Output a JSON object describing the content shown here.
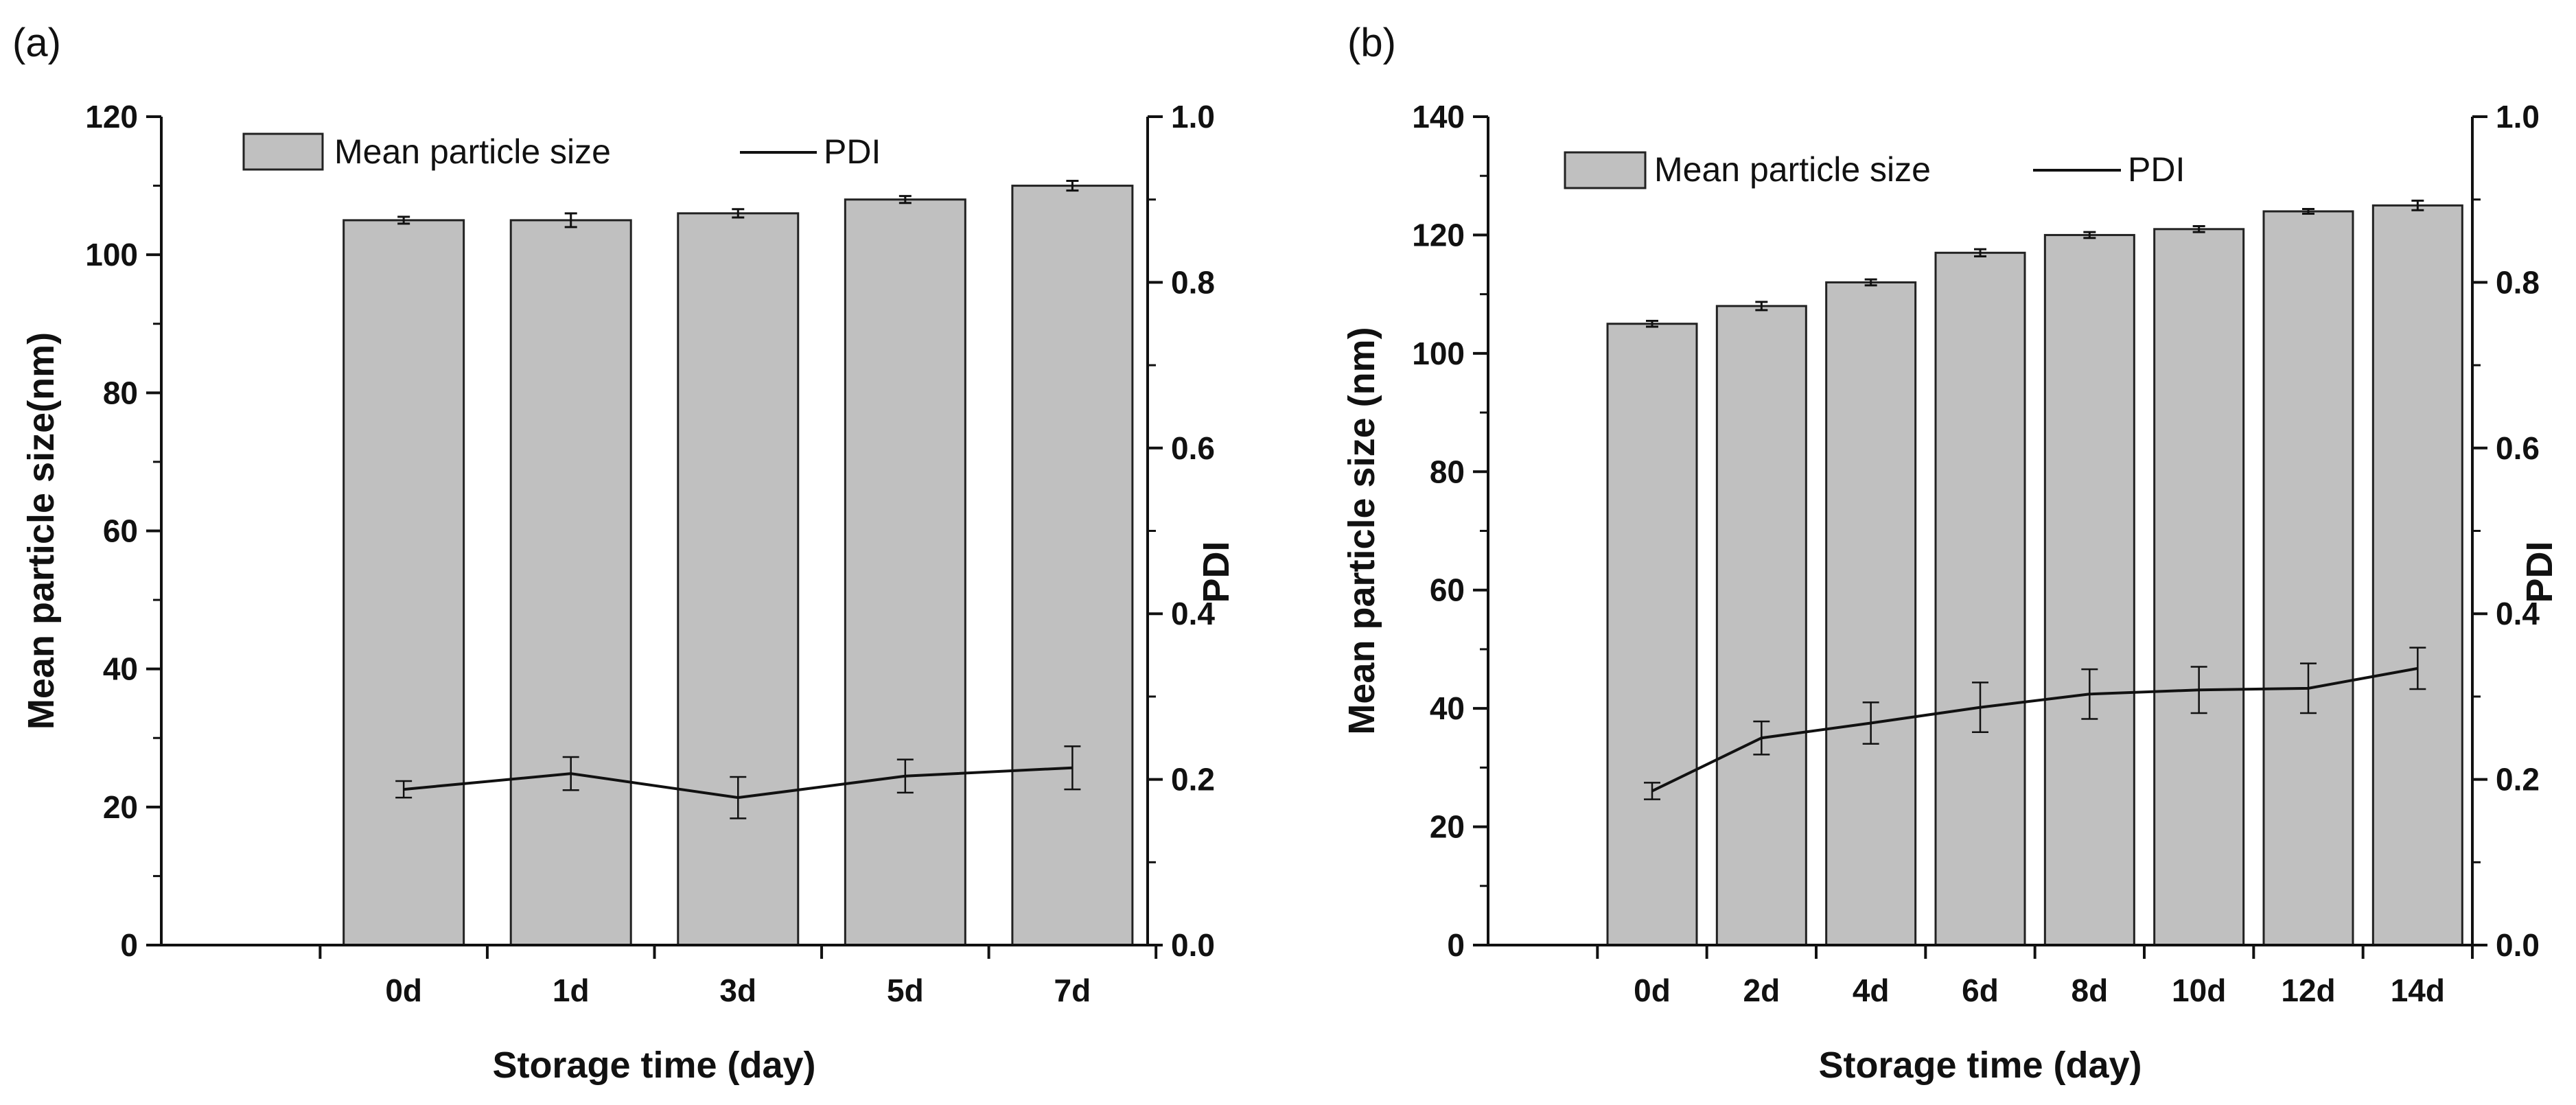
{
  "colors": {
    "bar_fill": "#c0c0c0",
    "bar_stroke": "#222222",
    "line": "#111111",
    "axis": "#111111"
  },
  "chart_data": [
    {
      "panel_label": "(a)",
      "type": "bar+line",
      "xlabel": "Storage time (day)",
      "ylabel": "Mean particle size(nm)",
      "y2label": "PDI",
      "categories": [
        "0d",
        "1d",
        "3d",
        "5d",
        "7d"
      ],
      "ylim": [
        0,
        120
      ],
      "yticks": [
        0,
        20,
        40,
        60,
        80,
        100,
        120
      ],
      "ytick_labels": [
        "0",
        "20",
        "40",
        "60",
        "80",
        "100",
        "120"
      ],
      "y2lim": [
        0,
        1.0
      ],
      "y2ticks": [
        0,
        0.2,
        0.4,
        0.6,
        0.8,
        1.0
      ],
      "y2tick_labels": [
        "0.0",
        "0.2",
        "0.4",
        "0.6",
        "0.8",
        "1.0"
      ],
      "series": [
        {
          "name": "Mean particle size",
          "kind": "bar",
          "axis": "left",
          "values": [
            105,
            105,
            106,
            108,
            110
          ],
          "errors": [
            0.5,
            1.0,
            0.6,
            0.5,
            0.7
          ]
        },
        {
          "name": "PDI",
          "kind": "line",
          "axis": "right",
          "values": [
            0.188,
            0.207,
            0.178,
            0.204,
            0.214
          ],
          "errors": [
            0.01,
            0.02,
            0.025,
            0.02,
            0.026
          ]
        }
      ],
      "legend": {
        "bar_label": "Mean particle size",
        "line_label": "PDI",
        "position": "top"
      }
    },
    {
      "panel_label": "(b)",
      "type": "bar+line",
      "xlabel": "Storage time (day)",
      "ylabel": "Mean particle size (nm)",
      "y2label": "PDI",
      "categories": [
        "0d",
        "2d",
        "4d",
        "6d",
        "8d",
        "10d",
        "12d",
        "14d"
      ],
      "ylim": [
        0,
        140
      ],
      "yticks": [
        0,
        20,
        40,
        60,
        80,
        100,
        120,
        140
      ],
      "ytick_labels": [
        "0",
        "20",
        "40",
        "60",
        "80",
        "100",
        "120",
        "140"
      ],
      "y2lim": [
        0,
        1.0
      ],
      "y2ticks": [
        0,
        0.2,
        0.4,
        0.6,
        0.8,
        1.0
      ],
      "y2tick_labels": [
        "0.0",
        "0.2",
        "0.4",
        "0.6",
        "0.8",
        "1.0"
      ],
      "series": [
        {
          "name": "Mean particle size",
          "kind": "bar",
          "axis": "left",
          "values": [
            105,
            108,
            112,
            117,
            120,
            121,
            124,
            125
          ],
          "errors": [
            0.5,
            0.7,
            0.5,
            0.6,
            0.5,
            0.5,
            0.4,
            0.8
          ]
        },
        {
          "name": "PDI",
          "kind": "line",
          "axis": "right",
          "values": [
            0.186,
            0.25,
            0.268,
            0.287,
            0.303,
            0.308,
            0.31,
            0.334
          ],
          "errors": [
            0.01,
            0.02,
            0.025,
            0.03,
            0.03,
            0.028,
            0.03,
            0.025
          ]
        }
      ],
      "legend": {
        "bar_label": "Mean particle size",
        "line_label": "PDI",
        "position": "top"
      }
    }
  ]
}
